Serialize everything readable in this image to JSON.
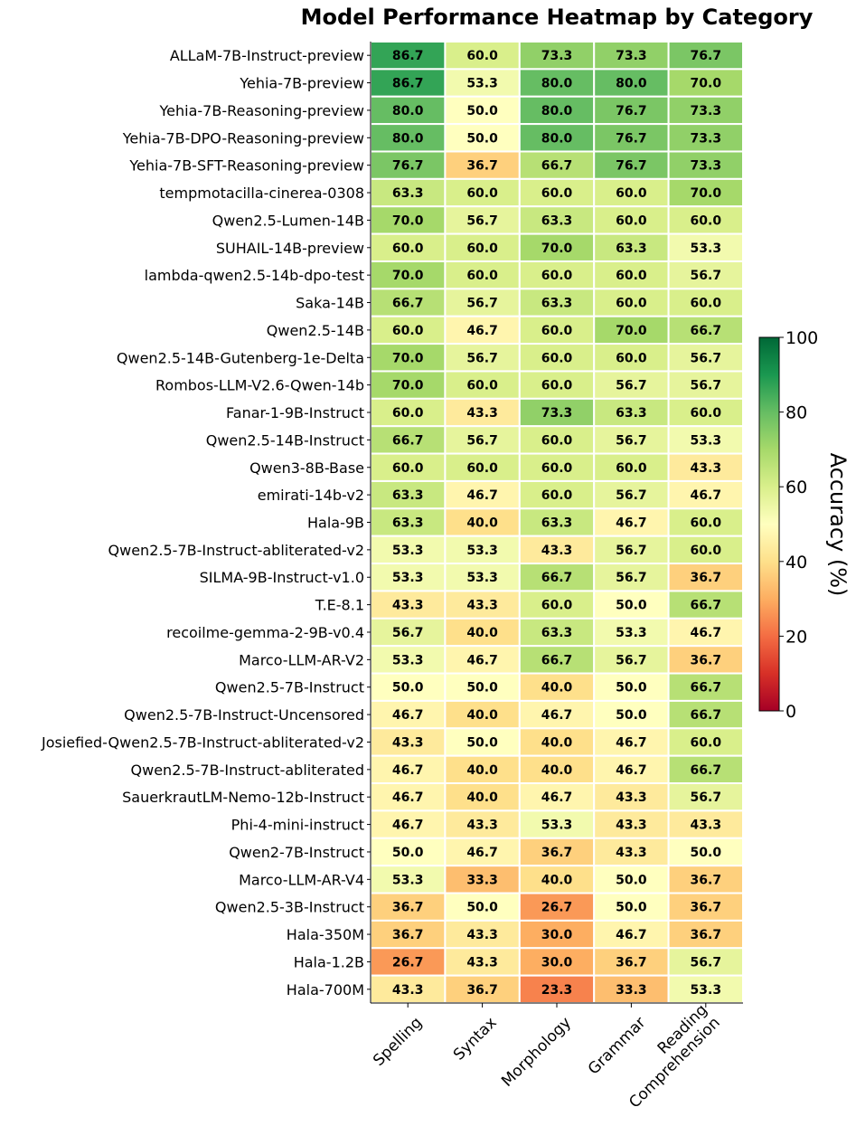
{
  "chart_data": {
    "type": "heatmap",
    "title": "Model Performance Heatmap by Category",
    "columns": [
      "Spelling",
      "Syntax",
      "Morphology",
      "Grammar",
      "Reading\nComprehension"
    ],
    "rows": [
      "ALLaM-7B-Instruct-preview",
      "Yehia-7B-preview",
      "Yehia-7B-Reasoning-preview",
      "Yehia-7B-DPO-Reasoning-preview",
      "Yehia-7B-SFT-Reasoning-preview",
      "tempmotacilla-cinerea-0308",
      "Qwen2.5-Lumen-14B",
      "SUHAIL-14B-preview",
      "lambda-qwen2.5-14b-dpo-test",
      "Saka-14B",
      "Qwen2.5-14B",
      "Qwen2.5-14B-Gutenberg-1e-Delta",
      "Rombos-LLM-V2.6-Qwen-14b",
      "Fanar-1-9B-Instruct",
      "Qwen2.5-14B-Instruct",
      "Qwen3-8B-Base",
      "emirati-14b-v2",
      "Hala-9B",
      "Qwen2.5-7B-Instruct-abliterated-v2",
      "SILMA-9B-Instruct-v1.0",
      "T.E-8.1",
      "recoilme-gemma-2-9B-v0.4",
      "Marco-LLM-AR-V2",
      "Qwen2.5-7B-Instruct",
      "Qwen2.5-7B-Instruct-Uncensored",
      "Josiefied-Qwen2.5-7B-Instruct-abliterated-v2",
      "Qwen2.5-7B-Instruct-abliterated",
      "SauerkrautLM-Nemo-12b-Instruct",
      "Phi-4-mini-instruct",
      "Qwen2-7B-Instruct",
      "Marco-LLM-AR-V4",
      "Qwen2.5-3B-Instruct",
      "Hala-350M",
      "Hala-1.2B",
      "Hala-700M"
    ],
    "values": [
      [
        86.7,
        60.0,
        73.3,
        73.3,
        76.7
      ],
      [
        86.7,
        53.3,
        80.0,
        80.0,
        70.0
      ],
      [
        80.0,
        50.0,
        80.0,
        76.7,
        73.3
      ],
      [
        80.0,
        50.0,
        80.0,
        76.7,
        73.3
      ],
      [
        76.7,
        36.7,
        66.7,
        76.7,
        73.3
      ],
      [
        63.3,
        60.0,
        60.0,
        60.0,
        70.0
      ],
      [
        70.0,
        56.7,
        63.3,
        60.0,
        60.0
      ],
      [
        60.0,
        60.0,
        70.0,
        63.3,
        53.3
      ],
      [
        70.0,
        60.0,
        60.0,
        60.0,
        56.7
      ],
      [
        66.7,
        56.7,
        63.3,
        60.0,
        60.0
      ],
      [
        60.0,
        46.7,
        60.0,
        70.0,
        66.7
      ],
      [
        70.0,
        56.7,
        60.0,
        60.0,
        56.7
      ],
      [
        70.0,
        60.0,
        60.0,
        56.7,
        56.7
      ],
      [
        60.0,
        43.3,
        73.3,
        63.3,
        60.0
      ],
      [
        66.7,
        56.7,
        60.0,
        56.7,
        53.3
      ],
      [
        60.0,
        60.0,
        60.0,
        60.0,
        43.3
      ],
      [
        63.3,
        46.7,
        60.0,
        56.7,
        46.7
      ],
      [
        63.3,
        40.0,
        63.3,
        46.7,
        60.0
      ],
      [
        53.3,
        53.3,
        43.3,
        56.7,
        60.0
      ],
      [
        53.3,
        53.3,
        66.7,
        56.7,
        36.7
      ],
      [
        43.3,
        43.3,
        60.0,
        50.0,
        66.7
      ],
      [
        56.7,
        40.0,
        63.3,
        53.3,
        46.7
      ],
      [
        53.3,
        46.7,
        66.7,
        56.7,
        36.7
      ],
      [
        50.0,
        50.0,
        40.0,
        50.0,
        66.7
      ],
      [
        46.7,
        40.0,
        46.7,
        50.0,
        66.7
      ],
      [
        43.3,
        50.0,
        40.0,
        46.7,
        60.0
      ],
      [
        46.7,
        40.0,
        40.0,
        46.7,
        66.7
      ],
      [
        46.7,
        40.0,
        46.7,
        43.3,
        56.7
      ],
      [
        46.7,
        43.3,
        53.3,
        43.3,
        43.3
      ],
      [
        50.0,
        46.7,
        36.7,
        43.3,
        50.0
      ],
      [
        53.3,
        33.3,
        40.0,
        50.0,
        36.7
      ],
      [
        36.7,
        50.0,
        26.7,
        50.0,
        36.7
      ],
      [
        36.7,
        43.3,
        30.0,
        46.7,
        36.7
      ],
      [
        26.7,
        43.3,
        30.0,
        36.7,
        56.7
      ],
      [
        43.3,
        36.7,
        23.3,
        33.3,
        53.3
      ]
    ],
    "colorbar": {
      "label": "Accuracy (%)",
      "range": [
        0,
        100
      ],
      "ticks": [
        0,
        20,
        40,
        60,
        80,
        100
      ],
      "colormap": "RdYlGn"
    }
  }
}
